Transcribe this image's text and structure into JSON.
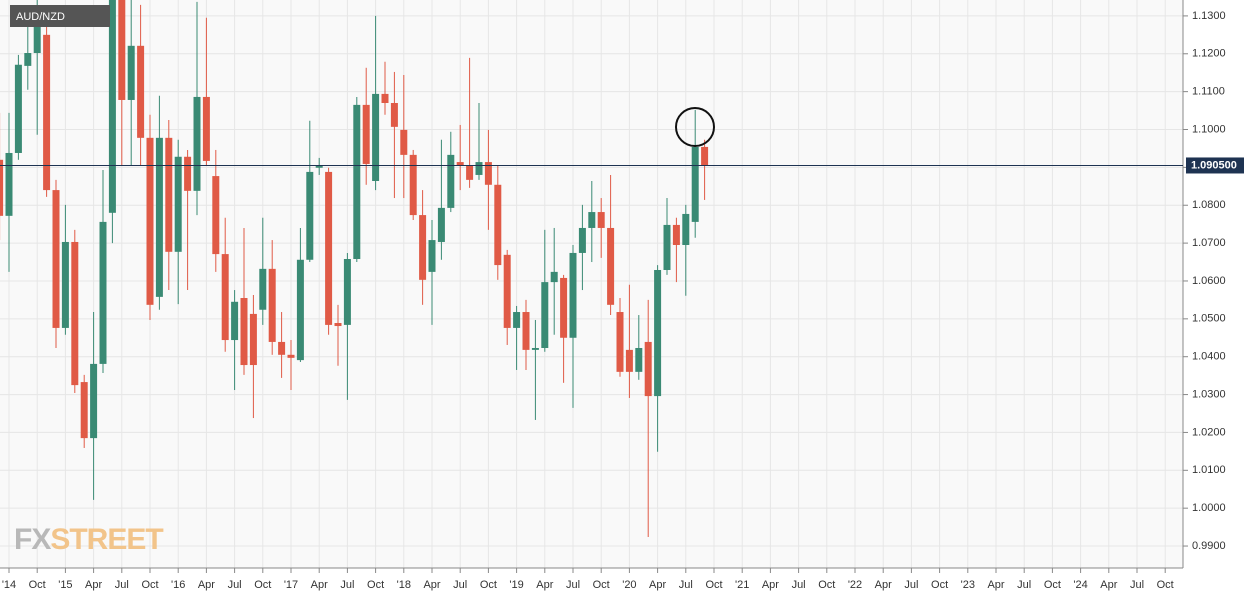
{
  "chart_data": {
    "type": "candlestick",
    "title": "AUD/NZD",
    "watermark": [
      "FX",
      "STREET"
    ],
    "x": [
      "2014-06",
      "2014-07",
      "2014-08",
      "2014-09",
      "2014-10",
      "2014-11",
      "2014-12",
      "2015-01",
      "2015-02",
      "2015-03",
      "2015-04",
      "2015-05",
      "2015-06",
      "2015-07",
      "2015-08",
      "2015-09",
      "2015-10",
      "2015-11",
      "2015-12",
      "2016-01",
      "2016-02",
      "2016-03",
      "2016-04",
      "2016-05",
      "2016-06",
      "2016-07",
      "2016-08",
      "2016-09",
      "2016-10",
      "2016-11",
      "2016-12",
      "2017-01",
      "2017-02",
      "2017-03",
      "2017-04",
      "2017-05",
      "2017-06",
      "2017-07",
      "2017-08",
      "2017-09",
      "2017-10",
      "2017-11",
      "2017-12",
      "2018-01",
      "2018-02",
      "2018-03",
      "2018-04",
      "2018-05",
      "2018-06",
      "2018-07",
      "2018-08",
      "2018-09",
      "2018-10",
      "2018-11",
      "2018-12",
      "2019-01",
      "2019-02",
      "2019-03",
      "2019-04",
      "2019-05",
      "2019-06",
      "2019-07",
      "2019-08",
      "2019-09",
      "2019-10",
      "2019-11",
      "2019-12",
      "2020-01",
      "2020-02",
      "2020-03",
      "2020-04",
      "2020-05",
      "2020-06",
      "2020-07",
      "2020-08",
      "2020-09"
    ],
    "open": [
      1.092,
      1.0772,
      1.0938,
      1.1168,
      1.1202,
      1.125,
      1.084,
      1.0476,
      1.0703,
      1.0333,
      1.0185,
      1.0381,
      1.078,
      1.1355,
      1.1078,
      1.1221,
      1.0978,
      1.0558,
      1.0978,
      1.0677,
      1.0928,
      1.0838,
      1.1086,
      1.0877,
      1.0671,
      1.0444,
      1.0555,
      1.0513,
      1.0524,
      1.0632,
      1.0439,
      1.0405,
      1.0391,
      1.0656,
      1.0899,
      1.0888,
      1.0489,
      1.0484,
      1.0658,
      1.1065,
      1.0864,
      1.1094,
      1.107,
      1.0999,
      1.0933,
      1.0774,
      1.0624,
      1.0703,
      1.0793,
      1.0914,
      1.0906,
      1.088,
      1.0914,
      1.0854,
      1.0669,
      1.0476,
      1.0518,
      1.0418,
      1.0423,
      1.0597,
      1.0608,
      1.045,
      1.0674,
      1.074,
      1.0782,
      1.074,
      1.0518,
      1.0418,
      1.036,
      1.0439,
      1.0296,
      1.0629,
      1.0748,
      1.0695,
      1.0756,
      1.0954
    ],
    "high": [
      1.1044,
      1.1044,
      1.1197,
      1.1289,
      1.1369,
      1.1289,
      1.0867,
      1.0801,
      1.0735,
      1.0352,
      1.0518,
      1.0893,
      1.1422,
      1.1395,
      1.1342,
      1.1329,
      1.1039,
      1.1089,
      1.1025,
      1.0973,
      1.0946,
      1.1337,
      1.1295,
      1.0946,
      1.0767,
      1.0576,
      1.074,
      1.0563,
      1.0767,
      1.0708,
      1.0518,
      1.0444,
      1.074,
      1.1023,
      1.0925,
      1.0899,
      1.0537,
      1.0674,
      1.1086,
      1.1163,
      1.13,
      1.1179,
      1.1152,
      1.1144,
      1.0946,
      1.084,
      1.0761,
      1.0973,
      1.0994,
      1.1012,
      1.1189,
      1.107,
      1.0999,
      1.0906,
      1.0682,
      1.0534,
      1.055,
      1.0497,
      1.0735,
      1.074,
      1.0616,
      1.0695,
      1.0801,
      1.0864,
      1.0819,
      1.088,
      1.0555,
      1.059,
      1.051,
      1.055,
      1.0642,
      1.0819,
      1.0767,
      1.0801,
      1.1052,
      1.0973
    ],
    "low": [
      1.0708,
      1.0624,
      1.092,
      1.1105,
      1.0986,
      1.0822,
      1.0423,
      1.0458,
      1.0304,
      1.0159,
      1.0022,
      1.0357,
      1.07,
      1.0906,
      1.0906,
      1.0906,
      1.0497,
      1.0524,
      1.0576,
      1.0539,
      1.0576,
      1.0774,
      1.0906,
      1.0624,
      1.0413,
      1.0312,
      1.0352,
      1.0238,
      1.0484,
      1.0405,
      1.0344,
      1.0312,
      1.0386,
      1.065,
      1.088,
      1.0458,
      1.0376,
      1.0286,
      1.065,
      1.0854,
      1.084,
      1.1039,
      1.0819,
      1.0819,
      1.0761,
      1.0537,
      1.0484,
      1.0656,
      1.0782,
      1.084,
      1.0846,
      1.0867,
      1.0735,
      1.0603,
      1.0431,
      1.0365,
      1.0365,
      1.0233,
      1.0413,
      1.0458,
      1.0331,
      1.0265,
      1.0576,
      1.065,
      1.0661,
      1.051,
      1.0347,
      1.0291,
      1.0339,
      0.9924,
      1.0149,
      1.0616,
      1.0597,
      1.0561,
      1.0714,
      1.0814
    ],
    "close": [
      1.0772,
      1.0938,
      1.1171,
      1.1202,
      1.1303,
      1.084,
      1.0476,
      1.0703,
      1.0325,
      1.0185,
      1.0381,
      1.0756,
      1.1355,
      1.1078,
      1.1221,
      1.0978,
      1.0537,
      1.0978,
      1.0677,
      1.0928,
      1.0838,
      1.1086,
      1.0917,
      1.0671,
      1.0444,
      1.0545,
      1.0378,
      1.0378,
      1.0632,
      1.0439,
      1.0405,
      1.0397,
      1.0656,
      1.0888,
      1.0906,
      1.0484,
      1.0481,
      1.0658,
      1.1065,
      1.0909,
      1.1094,
      1.107,
      1.1007,
      1.0933,
      1.0774,
      1.0603,
      1.0708,
      1.0793,
      1.0933,
      1.0906,
      1.0867,
      1.0914,
      1.0854,
      1.0642,
      1.0476,
      1.0518,
      1.0418,
      1.0423,
      1.0597,
      1.0624,
      1.045,
      1.0674,
      1.074,
      1.0782,
      1.074,
      1.0537,
      1.036,
      1.036,
      1.0423,
      1.0296,
      1.0629,
      1.0748,
      1.0695,
      1.0777,
      1.0954,
      1.0906
    ],
    "up_color": "#3a8a74",
    "down_color": "#e05a46",
    "price_line": {
      "value": 1.0905,
      "label": "1.090500",
      "color": "#1e3352"
    },
    "ylim": [
      0.9842,
      1.1342
    ],
    "yticks": [
      {
        "value": 1.13,
        "label": "1.1300"
      },
      {
        "value": 1.12,
        "label": "1.1200"
      },
      {
        "value": 1.11,
        "label": "1.1100"
      },
      {
        "value": 1.1,
        "label": "1.1000"
      },
      {
        "value": 1.09,
        "label": "1.0900"
      },
      {
        "value": 1.08,
        "label": "1.0800"
      },
      {
        "value": 1.07,
        "label": "1.0700"
      },
      {
        "value": 1.06,
        "label": "1.0600"
      },
      {
        "value": 1.05,
        "label": "1.0500"
      },
      {
        "value": 1.04,
        "label": "1.0400"
      },
      {
        "value": 1.03,
        "label": "1.0300"
      },
      {
        "value": 1.02,
        "label": "1.0200"
      },
      {
        "value": 1.01,
        "label": "1.0100"
      },
      {
        "value": 1.0,
        "label": "1.0000"
      },
      {
        "value": 0.99,
        "label": "0.9900"
      }
    ],
    "xticks": [
      {
        "value": "2014-07",
        "label": "'14"
      },
      {
        "value": "2014-10",
        "label": "Oct"
      },
      {
        "value": "2015-01",
        "label": "'15"
      },
      {
        "value": "2015-04",
        "label": "Apr"
      },
      {
        "value": "2015-07",
        "label": "Jul"
      },
      {
        "value": "2015-10",
        "label": "Oct"
      },
      {
        "value": "2016-01",
        "label": "'16"
      },
      {
        "value": "2016-04",
        "label": "Apr"
      },
      {
        "value": "2016-07",
        "label": "Jul"
      },
      {
        "value": "2016-10",
        "label": "Oct"
      },
      {
        "value": "2017-01",
        "label": "'17"
      },
      {
        "value": "2017-04",
        "label": "Apr"
      },
      {
        "value": "2017-07",
        "label": "Jul"
      },
      {
        "value": "2017-10",
        "label": "Oct"
      },
      {
        "value": "2018-01",
        "label": "'18"
      },
      {
        "value": "2018-04",
        "label": "Apr"
      },
      {
        "value": "2018-07",
        "label": "Jul"
      },
      {
        "value": "2018-10",
        "label": "Oct"
      },
      {
        "value": "2019-01",
        "label": "'19"
      },
      {
        "value": "2019-04",
        "label": "Apr"
      },
      {
        "value": "2019-07",
        "label": "Jul"
      },
      {
        "value": "2019-10",
        "label": "Oct"
      },
      {
        "value": "2020-01",
        "label": "'20"
      },
      {
        "value": "2020-04",
        "label": "Apr"
      },
      {
        "value": "2020-07",
        "label": "Jul"
      },
      {
        "value": "2020-10",
        "label": "Oct"
      },
      {
        "value": "2021-01",
        "label": "'21"
      },
      {
        "value": "2021-04",
        "label": "Apr"
      },
      {
        "value": "2021-07",
        "label": "Jul"
      },
      {
        "value": "2021-10",
        "label": "Oct"
      },
      {
        "value": "2022-01",
        "label": "'22"
      },
      {
        "value": "2022-04",
        "label": "Apr"
      },
      {
        "value": "2022-07",
        "label": "Jul"
      },
      {
        "value": "2022-10",
        "label": "Oct"
      },
      {
        "value": "2023-01",
        "label": "'23"
      },
      {
        "value": "2023-04",
        "label": "Apr"
      },
      {
        "value": "2023-07",
        "label": "Jul"
      },
      {
        "value": "2023-10",
        "label": "Oct"
      },
      {
        "value": "2024-01",
        "label": "'24"
      },
      {
        "value": "2024-04",
        "label": "Apr"
      },
      {
        "value": "2024-07",
        "label": "Jul"
      },
      {
        "value": "2024-10",
        "label": "Oct"
      }
    ],
    "grid": true
  }
}
